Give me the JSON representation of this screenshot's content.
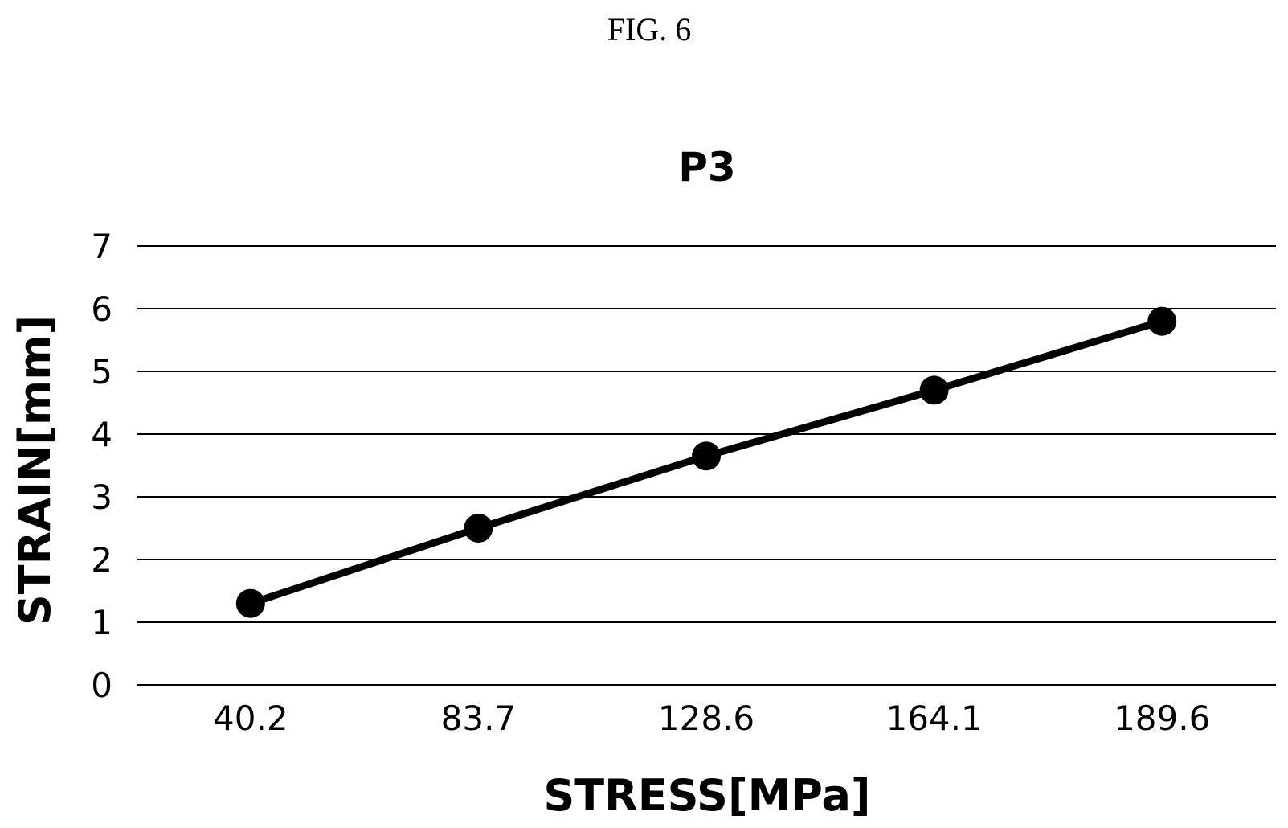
{
  "figure": {
    "label": "FIG. 6"
  },
  "chart_data": {
    "type": "line",
    "title": "P3",
    "xlabel": "STRESS[MPa]",
    "ylabel": "STRAIN[mm]",
    "categories": [
      "40.2",
      "83.7",
      "128.6",
      "164.1",
      "189.6"
    ],
    "series": [
      {
        "values": [
          1.3,
          2.5,
          3.65,
          4.7,
          5.8
        ]
      }
    ],
    "ylim": [
      0,
      7
    ],
    "yticks": [
      0,
      1,
      2,
      3,
      4,
      5,
      6,
      7
    ],
    "grid": true,
    "legend": "none",
    "colors": {
      "line": "#000000",
      "marker": "#000000",
      "grid": "#000000"
    }
  }
}
